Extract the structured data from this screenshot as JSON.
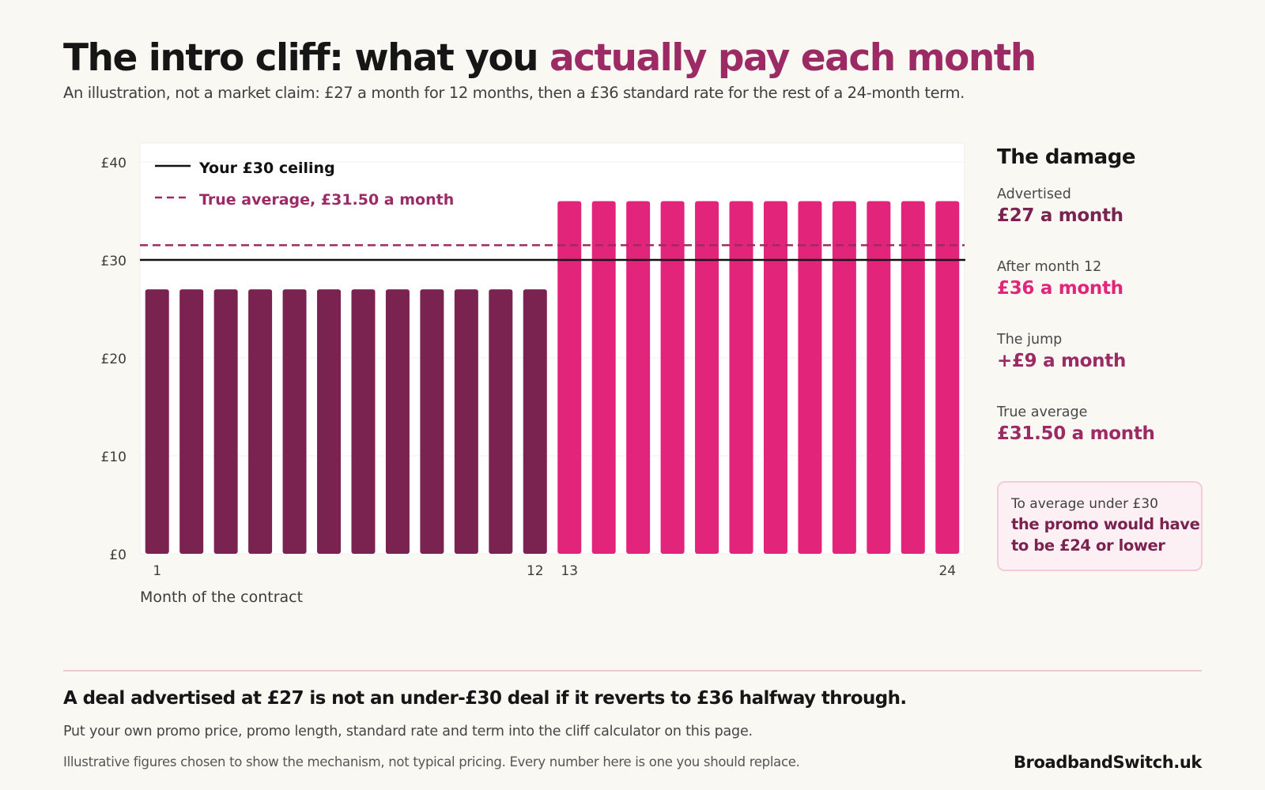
{
  "title": {
    "lead": "The intro cliff: what you",
    "accent": "actually pay each month"
  },
  "subtitle": "An illustration, not a market claim: £27 a month for 12 months, then a £36 standard rate for the rest of a 24-month term.",
  "chart_data": {
    "type": "bar",
    "categories": [
      1,
      2,
      3,
      4,
      5,
      6,
      7,
      8,
      9,
      10,
      11,
      12,
      13,
      14,
      15,
      16,
      17,
      18,
      19,
      20,
      21,
      22,
      23,
      24
    ],
    "series": [
      {
        "values": [
          27,
          27,
          27,
          27,
          27,
          27,
          27,
          27,
          27,
          27,
          27,
          27,
          36,
          36,
          36,
          36,
          36,
          36,
          36,
          36,
          36,
          36,
          36,
          36
        ]
      }
    ],
    "bar_colors": {
      "promo": "#7b2350",
      "standard": "#e2257a"
    },
    "promo_months": 12,
    "shown_x_labels": [
      "1",
      "12",
      "13",
      "24"
    ],
    "xlabel": "Month of the contract",
    "ylabel": "",
    "ylim": [
      0,
      40
    ],
    "y_ticks": [
      0,
      10,
      20,
      30,
      40
    ],
    "y_tick_labels": [
      "£0",
      "£10",
      "£20",
      "£30",
      "£40"
    ],
    "ceiling": {
      "value": 30,
      "label": "Your £30 ceiling",
      "color": "#111111"
    },
    "average": {
      "value": 31.5,
      "label": "True average, £31.50 a month",
      "color": "#9c2a64"
    },
    "legend_position": "top-left",
    "grid": true
  },
  "side": {
    "title": "The damage",
    "stats": [
      {
        "label": "Advertised",
        "value": "£27 a month"
      },
      {
        "label": "After month 12",
        "value": "£36 a month"
      },
      {
        "label": "The jump",
        "value": "+£9 a month"
      },
      {
        "label": "True average",
        "value": "£31.50 a month"
      }
    ],
    "callout": {
      "label": "To average under £30",
      "value": "the promo would have to be £24 or lower"
    }
  },
  "footer": {
    "takeaway": "A deal advertised at £27 is not an under-£30 deal if it reverts to £36 halfway through.",
    "instruction": "Put your own promo price, promo length, standard rate and term into the cliff calculator on this page.",
    "disclaimer": "Illustrative figures chosen to show the mechanism, not typical pricing.  Every number here is one you should replace.",
    "brand": "BroadbandSwitch.uk"
  }
}
